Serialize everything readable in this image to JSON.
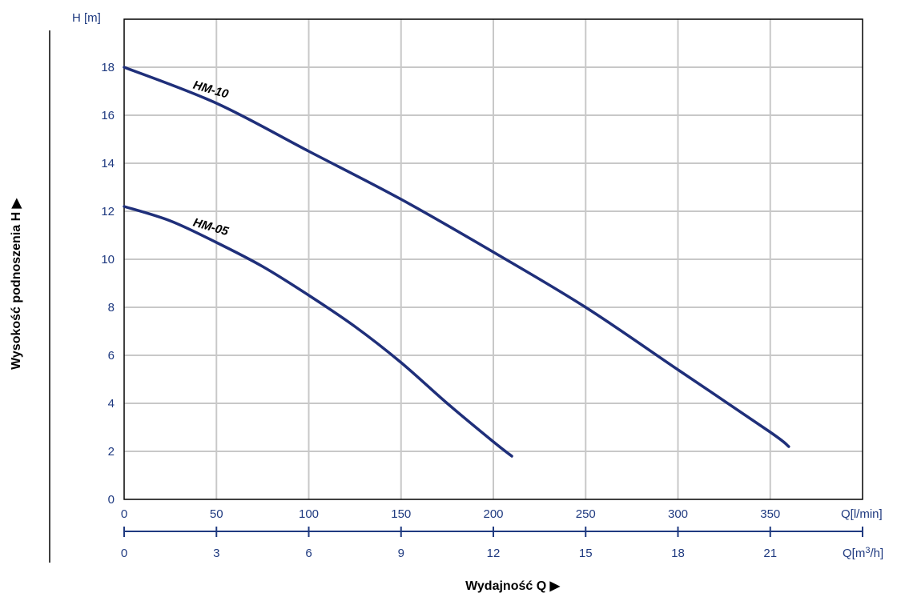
{
  "chart_data": {
    "type": "line",
    "ylabel": "H [m]",
    "ylim": [
      0,
      18
    ],
    "yticks": [
      "0",
      "2",
      "4",
      "6",
      "8",
      "10",
      "12",
      "14",
      "16",
      "18"
    ],
    "y_title": "Wysokość podnoszenia H ▶",
    "x_title": "Wydajność Q ▶",
    "x_axis_primary": {
      "unit_label": "Q[l/min]",
      "xlim": [
        0,
        400
      ],
      "ticks": [
        "0",
        "50",
        "100",
        "150",
        "200",
        "250",
        "300",
        "350"
      ]
    },
    "x_axis_secondary": {
      "unit_label_prefix": "Q[m",
      "unit_label_sup": "3",
      "unit_label_suffix": "/h]",
      "ticks": [
        "0",
        "3",
        "6",
        "9",
        "12",
        "15",
        "18",
        "21"
      ]
    },
    "grid": true,
    "series": [
      {
        "name": "HM-10",
        "x": [
          0,
          50,
          100,
          150,
          200,
          250,
          300,
          350,
          360
        ],
        "y": [
          18.0,
          16.5,
          14.5,
          12.5,
          10.3,
          8.0,
          5.4,
          2.8,
          2.2
        ]
      },
      {
        "name": "HM-05",
        "x": [
          0,
          25,
          50,
          75,
          100,
          125,
          150,
          175,
          200,
          210
        ],
        "y": [
          12.2,
          11.6,
          10.7,
          9.7,
          8.5,
          7.2,
          5.7,
          4.0,
          2.4,
          1.8
        ]
      }
    ],
    "colors": {
      "curve": "#1f2f7a",
      "grid": "#c8c8c8",
      "tick_text": "#1f3a80",
      "frame": "#000000",
      "label": "#000000"
    }
  }
}
